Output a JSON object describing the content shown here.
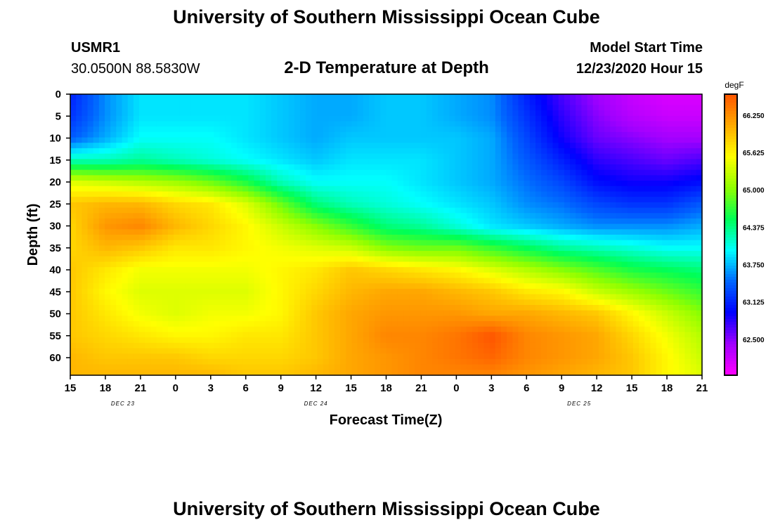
{
  "page": {
    "title_top": "University of Southern Mississippi Ocean Cube",
    "title_bottom": "University of Southern Mississippi Ocean Cube",
    "station": "USMR1",
    "coords": "30.0500N 88.5830W",
    "model_start_label": "Model Start Time",
    "model_start_value": "12/23/2020 Hour 15"
  },
  "chart_data": {
    "type": "heatmap",
    "title": "2-D Temperature at Depth",
    "xlabel": "Forecast Time(Z)",
    "ylabel": "Depth (ft)",
    "ylim": [
      0,
      64
    ],
    "y_ticks": [
      0,
      5,
      10,
      15,
      20,
      25,
      30,
      35,
      40,
      45,
      50,
      55,
      60
    ],
    "x_ticks": [
      "15",
      "18",
      "21",
      "0",
      "3",
      "6",
      "9",
      "12",
      "15",
      "18",
      "21",
      "0",
      "3",
      "6",
      "9",
      "12",
      "15",
      "18",
      "21"
    ],
    "x_hours": [
      0,
      3,
      6,
      9,
      12,
      15,
      18,
      21,
      24,
      27,
      30,
      33,
      36,
      39,
      42,
      45,
      48,
      51,
      54
    ],
    "date_labels": [
      {
        "text": "DEC 23",
        "hour": 4.5
      },
      {
        "text": "DEC 24",
        "hour": 21
      },
      {
        "text": "DEC 25",
        "hour": 43.5
      }
    ],
    "colorbar": {
      "unit": "degF",
      "min": 61.9,
      "max": 66.6,
      "ticks": [
        "66.250",
        "65.625",
        "65.000",
        "64.375",
        "63.750",
        "63.125",
        "62.500"
      ],
      "tick_values": [
        66.25,
        65.625,
        65.0,
        64.375,
        63.75,
        63.125,
        62.5
      ],
      "colors": [
        "#ff00ff",
        "#a000ff",
        "#0000ff",
        "#0066ff",
        "#00ffff",
        "#00ff55",
        "#90ff00",
        "#ffff00",
        "#ffaa00",
        "#ff5500"
      ]
    },
    "grid": false,
    "legend": "right",
    "time_hours": [
      0,
      3,
      6,
      9,
      12,
      15,
      18,
      21,
      24,
      27,
      30,
      33,
      36,
      39,
      42,
      45,
      48,
      51,
      54
    ],
    "depths_ft": [
      0,
      5,
      10,
      15,
      20,
      25,
      30,
      35,
      40,
      45,
      50,
      55,
      60,
      64
    ],
    "values_degF": [
      [
        63.1,
        63.6,
        63.9,
        63.9,
        63.9,
        63.9,
        63.8,
        63.7,
        63.7,
        63.8,
        63.8,
        63.7,
        63.6,
        63.1,
        62.7,
        62.4,
        62.2,
        62.1,
        62.1
      ],
      [
        63.2,
        63.6,
        63.9,
        63.9,
        63.9,
        63.9,
        63.8,
        63.7,
        63.7,
        63.8,
        63.8,
        63.7,
        63.6,
        63.2,
        62.8,
        62.5,
        62.3,
        62.2,
        62.2
      ],
      [
        63.4,
        63.7,
        64.0,
        64.0,
        64.0,
        63.9,
        63.8,
        63.7,
        63.8,
        63.8,
        63.8,
        63.8,
        63.7,
        63.3,
        62.9,
        62.6,
        62.5,
        62.4,
        62.4
      ],
      [
        64.2,
        64.2,
        64.3,
        64.2,
        64.1,
        64.0,
        63.9,
        63.8,
        63.9,
        63.9,
        63.9,
        63.8,
        63.7,
        63.4,
        63.1,
        62.8,
        62.7,
        62.6,
        62.7
      ],
      [
        65.4,
        65.3,
        65.2,
        65.1,
        64.9,
        64.6,
        64.2,
        64.0,
        64.0,
        64.0,
        63.9,
        63.8,
        63.7,
        63.5,
        63.3,
        63.0,
        62.9,
        62.9,
        63.0
      ],
      [
        65.9,
        66.0,
        66.0,
        65.8,
        65.7,
        65.4,
        64.9,
        64.4,
        64.2,
        64.1,
        64.0,
        63.9,
        63.8,
        63.6,
        63.5,
        63.3,
        63.2,
        63.2,
        63.4
      ],
      [
        65.8,
        66.2,
        66.3,
        66.0,
        65.8,
        65.6,
        65.3,
        65.0,
        64.7,
        64.4,
        64.3,
        64.1,
        63.9,
        63.8,
        63.7,
        63.6,
        63.6,
        63.6,
        63.7
      ],
      [
        65.8,
        66.0,
        65.9,
        65.7,
        65.7,
        65.6,
        65.5,
        65.4,
        65.3,
        65.0,
        64.9,
        64.9,
        64.7,
        64.5,
        64.3,
        64.2,
        64.1,
        64.0,
        64.0
      ],
      [
        65.9,
        65.7,
        65.5,
        65.5,
        65.5,
        65.5,
        65.6,
        65.7,
        65.9,
        65.8,
        65.7,
        65.6,
        65.4,
        65.2,
        65.0,
        64.8,
        64.6,
        64.5,
        64.4
      ],
      [
        65.9,
        65.6,
        65.4,
        65.4,
        65.4,
        65.4,
        65.6,
        65.8,
        66.0,
        66.1,
        66.1,
        66.0,
        65.9,
        65.7,
        65.6,
        65.3,
        65.1,
        64.9,
        64.7
      ],
      [
        65.9,
        65.7,
        65.5,
        65.4,
        65.5,
        65.5,
        65.6,
        65.9,
        66.1,
        66.2,
        66.2,
        66.2,
        66.1,
        66.1,
        66.0,
        65.9,
        65.6,
        65.3,
        65.0
      ],
      [
        65.9,
        65.8,
        65.7,
        65.6,
        65.6,
        65.7,
        65.7,
        65.9,
        66.1,
        66.3,
        66.3,
        66.4,
        66.6,
        66.3,
        66.2,
        66.1,
        65.8,
        65.5,
        65.2
      ],
      [
        66.0,
        65.9,
        65.9,
        65.9,
        65.8,
        65.8,
        65.8,
        65.9,
        66.1,
        66.2,
        66.3,
        66.4,
        66.5,
        66.3,
        66.2,
        66.1,
        65.9,
        65.6,
        65.3
      ],
      [
        66.0,
        66.0,
        66.0,
        66.0,
        66.0,
        65.9,
        65.9,
        66.0,
        66.1,
        66.2,
        66.3,
        66.3,
        66.3,
        66.2,
        66.1,
        66.0,
        65.9,
        65.6,
        65.4
      ]
    ]
  }
}
